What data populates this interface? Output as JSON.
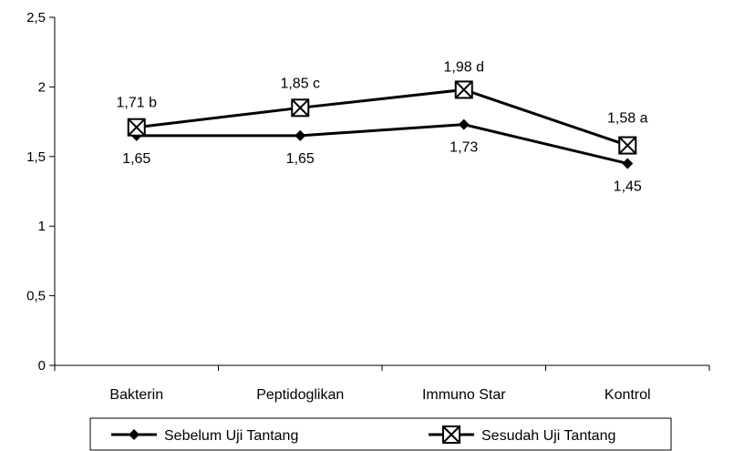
{
  "chart_data": {
    "type": "line",
    "categories": [
      "Bakterin",
      "Peptidoglikan",
      "Immuno Star",
      "Kontrol"
    ],
    "ylim": [
      0,
      2.5
    ],
    "yticks": [
      "0",
      "0,5",
      "1",
      "1,5",
      "2",
      "2,5"
    ],
    "ytick_values": [
      0,
      0.5,
      1,
      1.5,
      2,
      2.5
    ],
    "grid": false,
    "legend_position": "bottom",
    "series": [
      {
        "name": "Sebelum Uji Tantang",
        "values": [
          1.65,
          1.65,
          1.73,
          1.45
        ],
        "labels": [
          "1,65",
          "1,65",
          "1,73",
          "1,45"
        ],
        "marker": "diamond",
        "color": "#000000"
      },
      {
        "name": "Sesudah Uji Tantang",
        "values": [
          1.71,
          1.85,
          1.98,
          1.58
        ],
        "labels": [
          "1,71 b",
          "1,85 c",
          "1,98 d",
          "1,58 a"
        ],
        "marker": "square-x",
        "color": "#000000"
      }
    ]
  }
}
